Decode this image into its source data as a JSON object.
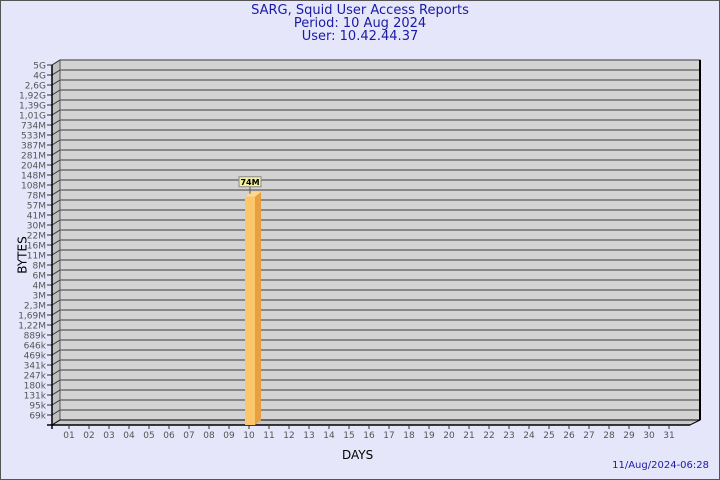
{
  "header": {
    "title": "SARG, Squid User Access Reports",
    "period": "Period: 10 Aug 2024",
    "user": "User: 10.42.44.37"
  },
  "footer": {
    "timestamp": "11/Aug/2024-06:28"
  },
  "colors": {
    "background": "#e6e6fa",
    "plot": "#d3d3d3",
    "bar": "#fcc66a",
    "bar_side": "#e8a040",
    "title": "#1a1aa6"
  },
  "chart_data": {
    "type": "bar",
    "style": "3d",
    "xlabel": "DAYS",
    "ylabel": "BYTES",
    "y_scale": "log",
    "grid": true,
    "y_ticks": [
      "69k",
      "95k",
      "131k",
      "180k",
      "247k",
      "341k",
      "469k",
      "646k",
      "889k",
      "1,22M",
      "1,69M",
      "2,3M",
      "3M",
      "4M",
      "6M",
      "8M",
      "11M",
      "16M",
      "22M",
      "30M",
      "41M",
      "57M",
      "78M",
      "108M",
      "148M",
      "204M",
      "281M",
      "387M",
      "533M",
      "734M",
      "1,01G",
      "1,39G",
      "1,92G",
      "2,6G",
      "4G",
      "5G"
    ],
    "categories": [
      "01",
      "02",
      "03",
      "04",
      "05",
      "06",
      "07",
      "08",
      "09",
      "10",
      "11",
      "12",
      "13",
      "14",
      "15",
      "16",
      "17",
      "18",
      "19",
      "20",
      "21",
      "22",
      "23",
      "24",
      "25",
      "26",
      "27",
      "28",
      "29",
      "30",
      "31"
    ],
    "bars": [
      {
        "day": "10",
        "value": 74000000,
        "label": "74M"
      }
    ]
  }
}
